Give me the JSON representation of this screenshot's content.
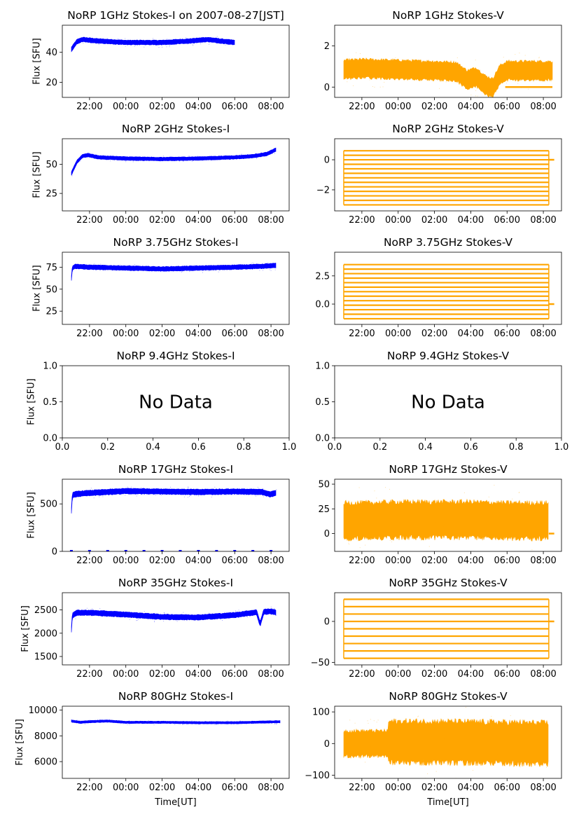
{
  "figure": {
    "date_label": "2007-08-27[JST]",
    "xlabel_left": "Time[UT]",
    "xlabel_right": "Time[UT]",
    "no_data_text": "No Data",
    "colors": {
      "stokes_i": "#0000ff",
      "stokes_v": "#ffa500"
    }
  },
  "chart_data": [
    {
      "id": "i1",
      "type": "scatter",
      "title": "NoRP 1GHz Stokes-I on 2007-08-27[JST]",
      "ylabel": "Flux [SFU]",
      "xlabel": "",
      "x_ticks": [
        "22:00",
        "00:00",
        "02:00",
        "04:00",
        "06:00",
        "08:00"
      ],
      "ylim": [
        10,
        58
      ],
      "y_ticks": [
        20,
        40
      ],
      "y_tick_labels": [
        "20",
        "40"
      ],
      "x_range_hours": [
        20.5,
        33.0
      ],
      "data_span_hours": [
        21.0,
        30.0
      ],
      "band": {
        "t": [
          21.0,
          21.3,
          21.6,
          22.5,
          24.0,
          26.0,
          27.5,
          28.5,
          29.2,
          30.0
        ],
        "y": [
          42,
          47,
          48.5,
          47.5,
          46.5,
          46.5,
          47.5,
          48.5,
          47.5,
          46.5
        ],
        "half_width": 1.5
      }
    },
    {
      "id": "v1",
      "type": "scatter",
      "title": "NoRP 1GHz Stokes-V",
      "ylabel": "",
      "xlabel": "",
      "x_ticks": [
        "22:00",
        "00:00",
        "02:00",
        "04:00",
        "06:00",
        "08:00"
      ],
      "ylim": [
        -0.5,
        3.0
      ],
      "y_ticks": [
        0,
        2
      ],
      "y_tick_labels": [
        "0",
        "2"
      ],
      "x_range_hours": [
        20.5,
        33.0
      ],
      "data_span_hours": [
        21.0,
        32.5
      ],
      "band": {
        "t": [
          21.0,
          22.0,
          24.0,
          26.0,
          27.2,
          27.8,
          28.3,
          28.8,
          29.2,
          29.6,
          30.0
        ],
        "y": [
          0.85,
          0.9,
          0.85,
          0.8,
          0.75,
          0.35,
          0.5,
          0.1,
          -0.05,
          0.6,
          0.8
        ],
        "half_width": 0.45
      },
      "zero_line": [
        29.9,
        32.5
      ]
    },
    {
      "id": "i2",
      "type": "scatter",
      "title": "NoRP 2GHz Stokes-I",
      "ylabel": "Flux [SFU]",
      "xlabel": "",
      "x_ticks": [
        "22:00",
        "00:00",
        "02:00",
        "04:00",
        "06:00",
        "08:00"
      ],
      "ylim": [
        10,
        72
      ],
      "y_ticks": [
        25,
        50
      ],
      "y_tick_labels": [
        "25",
        "50"
      ],
      "x_range_hours": [
        20.5,
        33.0
      ],
      "data_span_hours": [
        21.0,
        32.3
      ],
      "band": {
        "t": [
          21.0,
          21.3,
          21.6,
          21.9,
          22.5,
          24.0,
          26.0,
          28.0,
          30.0,
          31.0,
          31.8,
          32.3
        ],
        "y": [
          42,
          52,
          57,
          58,
          56,
          55,
          54.5,
          55,
          56,
          57,
          59,
          63
        ],
        "half_width": 1.5
      }
    },
    {
      "id": "v2",
      "type": "scatter",
      "title": "NoRP 2GHz Stokes-V",
      "ylabel": "",
      "xlabel": "",
      "x_ticks": [
        "22:00",
        "00:00",
        "02:00",
        "04:00",
        "06:00",
        "08:00"
      ],
      "ylim": [
        -3.4,
        1.4
      ],
      "y_ticks": [
        -2,
        0
      ],
      "y_tick_labels": [
        "−2",
        "0"
      ],
      "x_range_hours": [
        20.5,
        33.0
      ],
      "data_span_hours": [
        21.0,
        32.3
      ],
      "levels": [
        -3.0,
        -2.7,
        -2.4,
        -2.1,
        -1.8,
        -1.5,
        -1.2,
        -0.9,
        -0.6,
        -0.3,
        0.0,
        0.3,
        0.6
      ],
      "zero_line": [
        32.3,
        32.6
      ]
    },
    {
      "id": "i3",
      "type": "scatter",
      "title": "NoRP 3.75GHz Stokes-I",
      "ylabel": "Flux [SFU]",
      "xlabel": "",
      "x_ticks": [
        "22:00",
        "00:00",
        "02:00",
        "04:00",
        "06:00",
        "08:00"
      ],
      "ylim": [
        10,
        92
      ],
      "y_ticks": [
        25,
        50,
        75
      ],
      "y_tick_labels": [
        "25",
        "50",
        "75"
      ],
      "x_range_hours": [
        20.5,
        33.0
      ],
      "data_span_hours": [
        21.0,
        32.3
      ],
      "band": {
        "t": [
          21.0,
          21.05,
          21.2,
          22.0,
          24.0,
          26.0,
          28.0,
          30.0,
          31.5,
          32.3
        ],
        "y": [
          62,
          74,
          76,
          75,
          74,
          73,
          74,
          75,
          76,
          77
        ],
        "half_width": 2.5
      }
    },
    {
      "id": "v3",
      "type": "scatter",
      "title": "NoRP 3.75GHz Stokes-V",
      "ylabel": "",
      "xlabel": "",
      "x_ticks": [
        "22:00",
        "00:00",
        "02:00",
        "04:00",
        "06:00",
        "08:00"
      ],
      "ylim": [
        -1.8,
        4.6
      ],
      "y_ticks": [
        0.0,
        2.5
      ],
      "y_tick_labels": [
        "0.0",
        "2.5"
      ],
      "x_range_hours": [
        20.5,
        33.0
      ],
      "data_span_hours": [
        21.0,
        32.3
      ],
      "levels": [
        -1.3,
        -0.9,
        -0.5,
        -0.1,
        0.3,
        0.7,
        1.1,
        1.5,
        1.9,
        2.3,
        2.7,
        3.1,
        3.5
      ],
      "zero_line": [
        32.3,
        32.6
      ]
    },
    {
      "id": "i4",
      "type": "scatter",
      "title": "NoRP 9.4GHz Stokes-I",
      "ylabel": "Flux [SFU]",
      "xlabel": "",
      "no_data": true,
      "xlim": [
        0.0,
        1.0
      ],
      "ylim": [
        0.0,
        1.0
      ],
      "x_tick_values": [
        0.0,
        0.2,
        0.4,
        0.6,
        0.8,
        1.0
      ],
      "x_tick_labels": [
        "0.0",
        "0.2",
        "0.4",
        "0.6",
        "0.8",
        "1.0"
      ],
      "y_ticks": [
        0.0,
        0.5,
        1.0
      ],
      "y_tick_labels": [
        "0.0",
        "0.5",
        "1.0"
      ]
    },
    {
      "id": "v4",
      "type": "scatter",
      "title": "NoRP 9.4GHz Stokes-V",
      "ylabel": "",
      "xlabel": "",
      "no_data": true,
      "xlim": [
        0.0,
        1.0
      ],
      "ylim": [
        0.0,
        1.0
      ],
      "x_tick_values": [
        0.0,
        0.2,
        0.4,
        0.6,
        0.8,
        1.0
      ],
      "x_tick_labels": [
        "0.0",
        "0.2",
        "0.4",
        "0.6",
        "0.8",
        "1.0"
      ],
      "y_ticks": [
        0.0,
        0.5,
        1.0
      ],
      "y_tick_labels": [
        "0.0",
        "0.5",
        "1.0"
      ]
    },
    {
      "id": "i5",
      "type": "scatter",
      "title": "NoRP 17GHz Stokes-I",
      "ylabel": "Flux [SFU]",
      "xlabel": "",
      "x_ticks": [
        "22:00",
        "00:00",
        "02:00",
        "04:00",
        "06:00",
        "08:00"
      ],
      "ylim": [
        0,
        760
      ],
      "y_ticks": [
        0,
        500
      ],
      "y_tick_labels": [
        "0",
        "500"
      ],
      "x_range_hours": [
        20.5,
        33.0
      ],
      "data_span_hours": [
        21.0,
        32.3
      ],
      "band": {
        "t": [
          21.0,
          21.05,
          21.3,
          22.0,
          24.0,
          26.0,
          28.0,
          30.0,
          31.5,
          32.0,
          32.3
        ],
        "y": [
          430,
          590,
          605,
          615,
          635,
          630,
          625,
          630,
          625,
          600,
          620
        ],
        "half_width": 28
      },
      "zero_marks": [
        21.0,
        22.0,
        23.0,
        24.0,
        25.0,
        26.0,
        27.0,
        28.0,
        29.0,
        30.0,
        31.0,
        32.0
      ]
    },
    {
      "id": "v5",
      "type": "scatter",
      "title": "NoRP 17GHz Stokes-V",
      "ylabel": "",
      "xlabel": "",
      "x_ticks": [
        "22:00",
        "00:00",
        "02:00",
        "04:00",
        "06:00",
        "08:00"
      ],
      "ylim": [
        -18,
        55
      ],
      "y_ticks": [
        0,
        25,
        50
      ],
      "y_tick_labels": [
        "0",
        "25",
        "50"
      ],
      "x_range_hours": [
        20.5,
        33.0
      ],
      "data_span_hours": [
        21.0,
        32.3
      ],
      "band": {
        "t": [
          21.0,
          22.0,
          24.0,
          26.0,
          28.0,
          30.0,
          32.3
        ],
        "y": [
          13,
          13,
          14,
          14,
          14,
          13,
          13
        ],
        "half_width": 18
      },
      "zero_line": [
        32.3,
        32.6
      ]
    },
    {
      "id": "i6",
      "type": "scatter",
      "title": "NoRP 35GHz Stokes-I",
      "ylabel": "Flux [SFU]",
      "xlabel": "",
      "x_ticks": [
        "22:00",
        "00:00",
        "02:00",
        "04:00",
        "06:00",
        "08:00"
      ],
      "ylim": [
        1320,
        2870
      ],
      "y_ticks": [
        1500,
        2000,
        2500
      ],
      "y_tick_labels": [
        "1500",
        "2000",
        "2500"
      ],
      "x_range_hours": [
        20.5,
        33.0
      ],
      "data_span_hours": [
        21.0,
        32.3
      ],
      "band": {
        "t": [
          21.0,
          21.05,
          21.3,
          22.0,
          24.0,
          26.0,
          28.0,
          30.0,
          31.2,
          31.4,
          31.6,
          32.0,
          32.3
        ],
        "y": [
          2080,
          2380,
          2440,
          2440,
          2400,
          2350,
          2340,
          2390,
          2450,
          2200,
          2460,
          2470,
          2440
        ],
        "half_width": 55
      }
    },
    {
      "id": "v6",
      "type": "scatter",
      "title": "NoRP 35GHz Stokes-V",
      "ylabel": "",
      "xlabel": "",
      "x_ticks": [
        "22:00",
        "00:00",
        "02:00",
        "04:00",
        "06:00",
        "08:00"
      ],
      "ylim": [
        -53,
        35
      ],
      "y_ticks": [
        -50,
        0
      ],
      "y_tick_labels": [
        "−50",
        "0"
      ],
      "x_range_hours": [
        20.5,
        33.0
      ],
      "data_span_hours": [
        21.0,
        32.3
      ],
      "levels": [
        -45,
        -36,
        -27,
        -18,
        -9,
        0,
        9,
        18,
        27
      ],
      "zero_line": [
        32.3,
        32.6
      ]
    },
    {
      "id": "i7",
      "type": "scatter",
      "title": "NoRP 80GHz Stokes-I",
      "ylabel": "Flux [SFU]",
      "xlabel": "Time[UT]",
      "x_ticks": [
        "22:00",
        "00:00",
        "02:00",
        "04:00",
        "06:00",
        "08:00"
      ],
      "ylim": [
        4700,
        10300
      ],
      "y_ticks": [
        6000,
        8000,
        10000
      ],
      "y_tick_labels": [
        "6000",
        "8000",
        "10000"
      ],
      "x_range_hours": [
        20.5,
        33.0
      ],
      "data_span_hours": [
        21.0,
        32.5
      ],
      "band": {
        "t": [
          21.0,
          21.5,
          22.0,
          23.0,
          23.5,
          24.0,
          26.0,
          28.0,
          30.0,
          32.5
        ],
        "y": [
          9150,
          9050,
          9100,
          9150,
          9100,
          9050,
          9050,
          9020,
          9020,
          9100
        ],
        "half_width": 85
      }
    },
    {
      "id": "v7",
      "type": "scatter",
      "title": "NoRP 80GHz Stokes-V",
      "ylabel": "",
      "xlabel": "Time[UT]",
      "x_ticks": [
        "22:00",
        "00:00",
        "02:00",
        "04:00",
        "06:00",
        "08:00"
      ],
      "ylim": [
        -110,
        118
      ],
      "y_ticks": [
        -100,
        0,
        100
      ],
      "y_tick_labels": [
        "−100",
        "0",
        "100"
      ],
      "x_range_hours": [
        20.5,
        33.0
      ],
      "data_span_hours": [
        21.0,
        32.3
      ],
      "band": {
        "t": [
          21.0,
          23.4,
          23.5,
          26.0,
          29.0,
          32.3
        ],
        "y": [
          0,
          0,
          5,
          5,
          3,
          0
        ],
        "half_width_segments": [
          [
            21.0,
            23.45,
            40
          ],
          [
            23.45,
            32.3,
            65
          ]
        ]
      }
    }
  ]
}
